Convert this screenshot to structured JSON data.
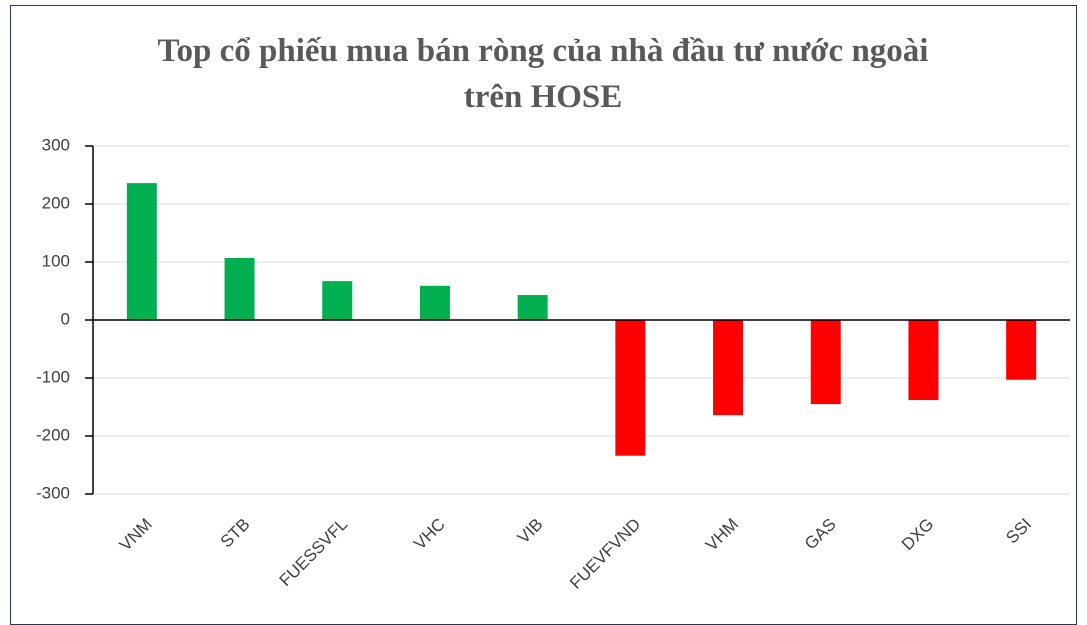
{
  "chart_data": {
    "type": "bar",
    "title": "Top cổ phiếu mua bán ròng của nhà đầu tư nước ngoài trên HOSE",
    "categories": [
      "VNM",
      "STB",
      "FUESSVFL",
      "VHC",
      "VIB",
      "FUEVFVND",
      "VHM",
      "GAS",
      "DXG",
      "SSI"
    ],
    "values": [
      236,
      107,
      67,
      59,
      43,
      -234,
      -164,
      -145,
      -138,
      -103
    ],
    "colors": [
      "#00b050",
      "#00b050",
      "#00b050",
      "#00b050",
      "#00b050",
      "#ff0000",
      "#ff0000",
      "#ff0000",
      "#ff0000",
      "#ff0000"
    ],
    "ylim": [
      -300,
      300
    ],
    "yticks": [
      -300,
      -200,
      -100,
      0,
      100,
      200,
      300
    ],
    "grid": true
  }
}
